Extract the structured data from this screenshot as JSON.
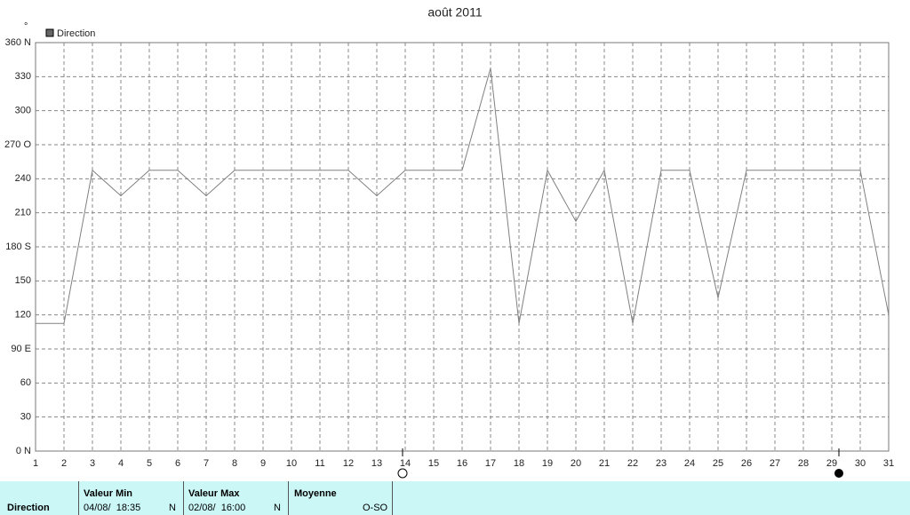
{
  "chart_data": {
    "type": "line",
    "title": "août 2011",
    "y_unit": "°",
    "x": [
      1,
      2,
      3,
      4,
      5,
      6,
      7,
      8,
      9,
      10,
      11,
      12,
      13,
      14,
      15,
      16,
      17,
      18,
      19,
      20,
      21,
      22,
      23,
      24,
      25,
      26,
      27,
      28,
      29,
      30,
      31
    ],
    "xlim": [
      1,
      31
    ],
    "xticks": [
      1,
      2,
      3,
      4,
      5,
      6,
      7,
      8,
      9,
      10,
      11,
      12,
      13,
      14,
      15,
      16,
      17,
      18,
      19,
      20,
      21,
      22,
      23,
      24,
      25,
      26,
      27,
      28,
      29,
      30,
      31
    ],
    "ylim": [
      0,
      360
    ],
    "yticks": [
      {
        "value": 0,
        "label": "0 N"
      },
      30,
      60,
      {
        "value": 90,
        "label": "90 E"
      },
      120,
      150,
      {
        "value": 180,
        "label": "180 S"
      },
      210,
      240,
      {
        "value": 270,
        "label": "270 O"
      },
      300,
      330,
      {
        "value": 360,
        "label": "360 N"
      }
    ],
    "grid": true,
    "series": [
      {
        "name": "Direction",
        "color": "#808080",
        "values": [
          112.5,
          112.5,
          247.5,
          225,
          247.5,
          247.5,
          225,
          247.5,
          247.5,
          247.5,
          247.5,
          247.5,
          225,
          247.5,
          247.5,
          247.5,
          337.5,
          112.5,
          247.5,
          202.5,
          247.5,
          112.5,
          247.5,
          247.5,
          135,
          247.5,
          247.5,
          247.5,
          247.5,
          247.5,
          120
        ]
      }
    ]
  },
  "summary": {
    "row_label": "Direction",
    "columns": [
      {
        "header": "Valeur Min",
        "value": "04/08/  18:35",
        "unit": "N"
      },
      {
        "header": "Valeur Max",
        "value": "02/08/  16:00",
        "unit": "N"
      },
      {
        "header": "Moyenne",
        "value": "O-SO"
      }
    ]
  }
}
